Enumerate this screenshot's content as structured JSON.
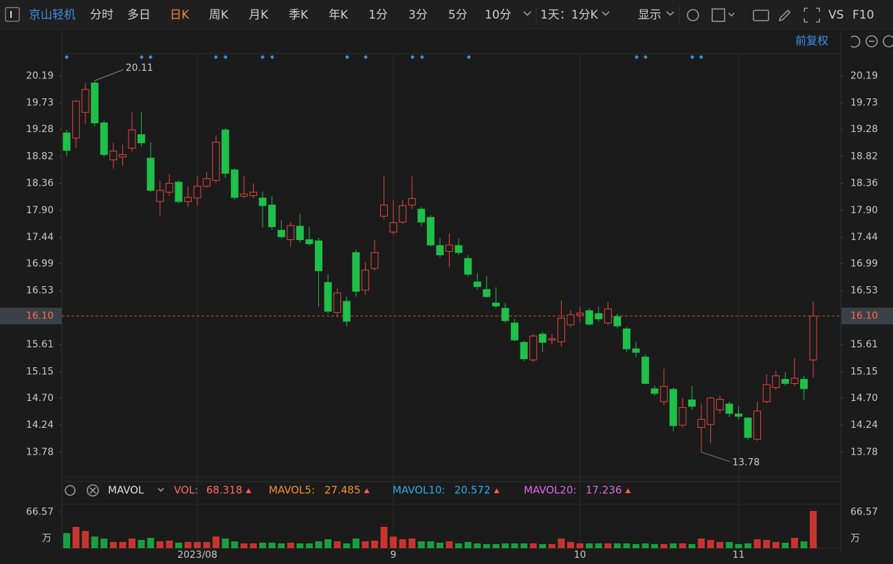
{
  "toolbar": {
    "symbol": "京山轻机",
    "periods": [
      "分时",
      "多日",
      "日K",
      "周K",
      "月K",
      "季K",
      "年K",
      "1分",
      "3分",
      "5分",
      "10分"
    ],
    "active": "日K",
    "interval": "1天：1分K",
    "display": "显示",
    "buttons": [
      "VS",
      "F10"
    ],
    "adjust": "前复权"
  },
  "chart_data": [
    {
      "type": "candlestick",
      "up_color": "#e8463c",
      "down_color": "#1fbf4a",
      "grid": true,
      "categories": [
        null,
        null,
        null,
        null,
        null,
        null,
        null,
        null,
        null,
        null,
        null,
        null,
        null,
        null,
        "2023/08",
        null,
        null,
        null,
        null,
        null,
        null,
        null,
        null,
        null,
        null,
        null,
        null,
        null,
        null,
        null,
        null,
        null,
        null,
        null,
        null,
        "9",
        null,
        null,
        null,
        null,
        null,
        null,
        null,
        null,
        null,
        null,
        null,
        null,
        null,
        null,
        null,
        null,
        null,
        null,
        null,
        "10",
        null,
        null,
        null,
        null,
        null,
        null,
        null,
        null,
        null,
        null,
        null,
        null,
        null,
        null,
        null,
        null,
        "11",
        null,
        null,
        null,
        null,
        null,
        null,
        null,
        null
      ],
      "open": [
        19.22,
        19.13,
        19.57,
        20.07,
        19.39,
        18.76,
        18.81,
        18.96,
        19.19,
        18.79,
        18.05,
        18.21,
        18.38,
        18.05,
        18.11,
        18.31,
        18.41,
        19.27,
        18.59,
        18.14,
        18.15,
        18.11,
        17.99,
        17.56,
        17.4,
        17.63,
        17.4,
        17.38,
        16.67,
        16.16,
        16.35,
        17.18,
        16.54,
        16.91,
        17.8,
        17.53,
        17.7,
        17.99,
        17.92,
        17.78,
        17.3,
        17.2,
        17.3,
        17.08,
        16.68,
        16.55,
        16.32,
        16.23,
        15.98,
        15.65,
        15.35,
        15.79,
        15.69,
        15.66,
        15.95,
        16.12,
        16.19,
        16.14,
        15.98,
        16.09,
        15.88,
        15.54,
        15.4,
        14.86,
        14.64,
        14.85,
        14.24,
        14.67,
        14.2,
        14.25,
        14.5,
        14.6,
        14.43,
        14.36,
        14.0,
        14.64,
        14.88,
        15.02,
        14.95,
        15.02,
        15.35
      ],
      "high": [
        19.27,
        19.78,
        20.07,
        20.11,
        19.43,
        19.05,
        19.02,
        19.57,
        19.58,
        19.06,
        18.41,
        18.52,
        18.41,
        18.31,
        18.48,
        18.55,
        19.18,
        19.3,
        18.62,
        18.49,
        18.36,
        18.22,
        18.14,
        17.73,
        17.7,
        17.84,
        17.62,
        17.43,
        16.81,
        16.57,
        16.43,
        17.23,
        17.02,
        17.4,
        18.49,
        18.08,
        18.08,
        18.48,
        17.96,
        17.82,
        17.43,
        17.51,
        17.42,
        17.14,
        16.83,
        16.78,
        16.59,
        16.32,
        16.05,
        15.68,
        15.79,
        15.83,
        15.79,
        16.36,
        16.2,
        16.26,
        16.23,
        16.26,
        16.34,
        16.14,
        15.91,
        15.66,
        15.44,
        14.91,
        15.2,
        14.88,
        14.7,
        14.91,
        14.61,
        14.72,
        14.74,
        14.64,
        14.56,
        14.38,
        14.64,
        15.11,
        15.17,
        15.14,
        15.38,
        15.08,
        16.35
      ],
      "low": [
        18.82,
        18.96,
        19.37,
        19.33,
        18.81,
        18.61,
        18.66,
        18.9,
        18.99,
        18.21,
        17.81,
        18.14,
        18.02,
        17.96,
        17.98,
        18.29,
        18.37,
        18.45,
        18.08,
        18.11,
        18.11,
        17.61,
        17.57,
        17.42,
        17.28,
        17.35,
        17.3,
        16.26,
        16.14,
        16.08,
        15.92,
        16.43,
        16.46,
        16.87,
        17.75,
        17.49,
        17.67,
        17.92,
        17.63,
        17.28,
        17.1,
        16.93,
        17.14,
        16.77,
        16.55,
        16.41,
        16.23,
        15.99,
        15.67,
        15.33,
        15.32,
        15.49,
        15.61,
        15.58,
        15.91,
        15.99,
        15.93,
        16.0,
        15.94,
        15.89,
        15.49,
        15.4,
        14.93,
        14.74,
        14.58,
        14.14,
        14.2,
        14.5,
        13.78,
        13.93,
        14.44,
        14.38,
        14.34,
        13.99,
        13.97,
        14.61,
        14.84,
        14.91,
        14.91,
        14.67,
        15.05
      ],
      "close": [
        18.92,
        19.76,
        19.96,
        19.39,
        18.85,
        18.91,
        18.85,
        19.27,
        19.05,
        18.24,
        18.24,
        18.36,
        18.05,
        18.12,
        18.31,
        18.44,
        19.06,
        18.53,
        18.12,
        18.18,
        18.21,
        17.98,
        17.62,
        17.45,
        17.64,
        17.4,
        17.33,
        16.87,
        16.18,
        16.49,
        16.01,
        16.52,
        16.88,
        17.18,
        17.99,
        17.69,
        17.98,
        18.1,
        17.7,
        17.31,
        17.14,
        17.31,
        17.18,
        16.81,
        16.6,
        16.43,
        16.27,
        16.02,
        15.69,
        15.37,
        15.76,
        15.65,
        15.71,
        16.06,
        16.12,
        16.15,
        15.96,
        16.05,
        16.22,
        15.93,
        15.54,
        15.48,
        14.95,
        14.78,
        14.9,
        14.23,
        14.54,
        14.56,
        14.34,
        14.7,
        14.68,
        14.44,
        14.39,
        14.03,
        14.48,
        14.93,
        15.08,
        14.95,
        15.04,
        14.86,
        16.1
      ],
      "ylim": [
        13.35,
        20.57
      ],
      "yticks": [
        20.19,
        19.73,
        19.28,
        18.82,
        18.36,
        {
          "value": 17.9,
          "label": "17.90"
        },
        17.44,
        16.99,
        16.53,
        15.61,
        15.15,
        {
          "value": 14.7,
          "label": "14.70"
        },
        14.24,
        13.78
      ],
      "last_price": {
        "value": 16.1,
        "label": "16.10"
      },
      "high_label": 20.11,
      "low_label": 13.78
    },
    {
      "type": "volume",
      "indicator": "MAVOL",
      "stats": [
        {
          "name": "VOL:",
          "value": 68.318,
          "color": "#ff6b6b"
        },
        {
          "name": "MAVOL5:",
          "value": 27.485,
          "color": "#f5922f"
        },
        {
          "name": "MAVOL10:",
          "value": 20.572,
          "color": "#35a9e6"
        },
        {
          "name": "MAVOL20:",
          "value": 17.236,
          "color": "#e06ae6"
        }
      ],
      "values": [
        27.8,
        39.2,
        31.6,
        21.5,
        17.7,
        11.4,
        11.4,
        17.7,
        15.2,
        19.0,
        12.6,
        13.9,
        10.1,
        11.4,
        11.4,
        11.4,
        21.5,
        17.7,
        12.6,
        8.8,
        8.8,
        10.1,
        10.1,
        8.8,
        10.1,
        8.8,
        8.8,
        12.6,
        16.4,
        12.6,
        8.8,
        17.7,
        12.6,
        13.9,
        39.2,
        21.5,
        16.4,
        17.7,
        12.6,
        12.6,
        10.1,
        12.6,
        8.8,
        11.4,
        8.8,
        7.6,
        7.6,
        8.8,
        8.8,
        8.8,
        8.8,
        7.6,
        7.6,
        17.7,
        11.4,
        8.8,
        8.8,
        8.8,
        8.8,
        8.8,
        8.8,
        7.6,
        8.8,
        7.6,
        7.6,
        8.8,
        8.8,
        7.6,
        17.7,
        15.2,
        11.4,
        11.4,
        7.6,
        8.8,
        16.4,
        15.2,
        11.4,
        10.1,
        19.0,
        12.6,
        68.318
      ],
      "up_color": "#c8342f",
      "down_color": "#1a9e3f",
      "ylim": [
        0,
        80.9
      ],
      "yticks": [
        66.57
      ],
      "unit": "万"
    }
  ]
}
